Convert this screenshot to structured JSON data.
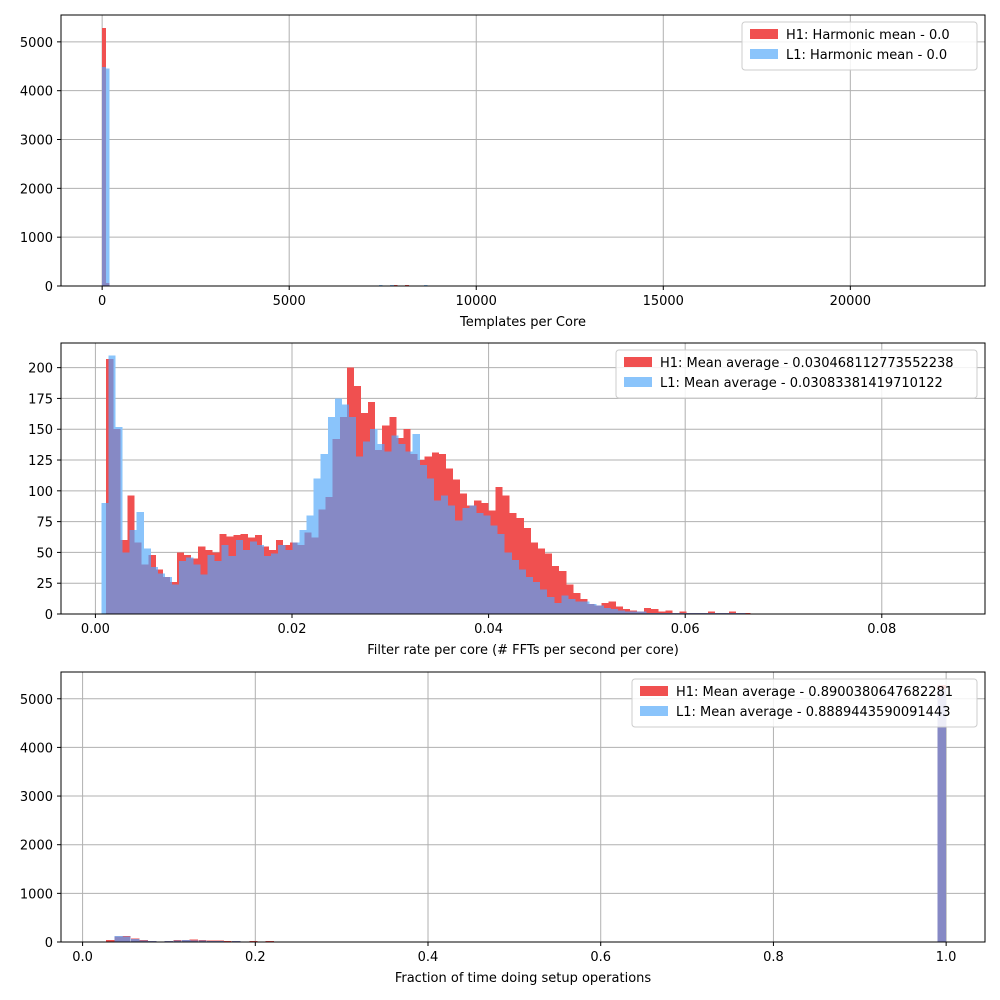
{
  "colors": {
    "H1": "#f05050",
    "L1": "#8ac4fb",
    "overlap": "#8689c5",
    "grid": "#b0b0b0",
    "axis": "#000000"
  },
  "chart_data": [
    {
      "type": "bar",
      "xlabel": "Templates per Core",
      "ylabel": "",
      "title": "",
      "xlim": [
        -1100,
        23600
      ],
      "ylim": [
        0,
        5550
      ],
      "xticks": [
        0,
        5000,
        10000,
        15000,
        20000
      ],
      "yticks": [
        0,
        1000,
        2000,
        3000,
        4000,
        5000
      ],
      "grid": true,
      "legend_position": "top-right",
      "series": [
        {
          "name": "H1: Harmonic mean  - 0.0",
          "bin_width": 100,
          "bins": [
            [
              0,
              5280
            ],
            [
              100,
              60
            ],
            [
              5200,
              6
            ],
            [
              5600,
              5
            ],
            [
              6000,
              6
            ],
            [
              6400,
              5
            ],
            [
              6800,
              8
            ],
            [
              7200,
              10
            ],
            [
              7500,
              14
            ],
            [
              7800,
              16
            ],
            [
              8100,
              20
            ],
            [
              8400,
              14
            ],
            [
              8700,
              12
            ],
            [
              9000,
              10
            ],
            [
              9300,
              8
            ],
            [
              9600,
              9
            ],
            [
              9900,
              10
            ],
            [
              10100,
              14
            ],
            [
              10400,
              8
            ],
            [
              10700,
              6
            ]
          ]
        },
        {
          "name": "L1: Harmonic mean  - 0.0",
          "bin_width": 100,
          "bins": [
            [
              0,
              4480
            ],
            [
              100,
              4450
            ],
            [
              5400,
              5
            ],
            [
              5800,
              6
            ],
            [
              6200,
              6
            ],
            [
              6600,
              7
            ],
            [
              7000,
              9
            ],
            [
              7400,
              16
            ],
            [
              7700,
              18
            ],
            [
              8000,
              12
            ],
            [
              8300,
              14
            ],
            [
              8600,
              18
            ],
            [
              8900,
              14
            ],
            [
              9200,
              10
            ],
            [
              9500,
              8
            ],
            [
              9800,
              10
            ],
            [
              10200,
              8
            ],
            [
              10500,
              6
            ],
            [
              10800,
              8
            ]
          ]
        }
      ]
    },
    {
      "type": "bar",
      "xlabel": "Filter rate per core (# FFTs per second per core)",
      "ylabel": "",
      "title": "",
      "xlim": [
        -0.0035,
        0.0905
      ],
      "ylim": [
        0,
        220
      ],
      "xticks": [
        0.0,
        0.02,
        0.04,
        0.06,
        0.08
      ],
      "xtick_labels": [
        "0.00",
        "0.02",
        "0.04",
        "0.06",
        "0.08"
      ],
      "yticks": [
        0,
        25,
        50,
        75,
        100,
        125,
        150,
        175,
        200
      ],
      "grid": true,
      "legend_position": "top-right",
      "series": [
        {
          "name": "H1: Mean average - 0.030468112773552238",
          "start": 0.0011,
          "bin_width": 0.00072,
          "values": [
            207,
            150,
            60,
            96,
            58,
            40,
            48,
            36,
            30,
            26,
            50,
            48,
            45,
            55,
            52,
            50,
            65,
            63,
            64,
            65,
            62,
            64,
            55,
            52,
            60,
            56,
            58,
            56,
            66,
            62,
            85,
            95,
            142,
            160,
            200,
            185,
            163,
            172,
            133,
            153,
            160,
            143,
            150,
            130,
            125,
            128,
            131,
            130,
            118,
            109,
            98,
            88,
            92,
            90,
            84,
            103,
            96,
            82,
            78,
            70,
            58,
            53,
            49,
            39,
            35,
            24,
            17,
            12,
            8,
            7,
            9,
            10,
            6,
            4,
            3,
            2,
            5,
            4,
            2,
            3,
            1,
            2,
            1,
            1,
            1,
            2,
            1,
            1,
            2,
            1,
            1
          ]
        },
        {
          "name": "L1: Mean average - 0.03083381419710122",
          "start": 0.0006,
          "bin_width": 0.00072,
          "values": [
            90,
            210,
            152,
            50,
            68,
            83,
            53,
            38,
            33,
            30,
            24,
            43,
            46,
            40,
            32,
            48,
            43,
            56,
            47,
            60,
            52,
            59,
            56,
            47,
            49,
            56,
            52,
            58,
            68,
            80,
            110,
            130,
            160,
            175,
            170,
            160,
            128,
            140,
            150,
            138,
            132,
            145,
            138,
            132,
            146,
            121,
            110,
            92,
            96,
            88,
            76,
            86,
            88,
            82,
            80,
            72,
            65,
            50,
            44,
            36,
            30,
            26,
            20,
            14,
            9,
            15,
            12,
            10,
            10,
            8,
            7,
            5,
            4,
            3,
            2,
            2,
            2,
            1,
            1,
            1,
            1,
            1,
            1,
            1,
            1,
            1,
            1,
            1,
            1,
            1,
            1
          ]
        }
      ]
    },
    {
      "type": "bar",
      "xlabel": "Fraction of time doing setup operations",
      "ylabel": "",
      "title": "",
      "xlim": [
        -0.025,
        1.045
      ],
      "ylim": [
        0,
        5550
      ],
      "xticks": [
        0.0,
        0.2,
        0.4,
        0.6,
        0.8,
        1.0
      ],
      "xtick_labels": [
        "0.0",
        "0.2",
        "0.4",
        "0.6",
        "0.8",
        "1.0"
      ],
      "yticks": [
        0,
        1000,
        2000,
        3000,
        4000,
        5000
      ],
      "grid": true,
      "legend_position": "top-right",
      "series": [
        {
          "name": "H1: Mean average - 0.8900380647682281",
          "bin_width": 0.0097,
          "bins": [
            [
              0.027,
              40
            ],
            [
              0.037,
              110
            ],
            [
              0.046,
              120
            ],
            [
              0.056,
              70
            ],
            [
              0.066,
              40
            ],
            [
              0.076,
              25
            ],
            [
              0.095,
              25
            ],
            [
              0.105,
              40
            ],
            [
              0.115,
              45
            ],
            [
              0.124,
              50
            ],
            [
              0.134,
              40
            ],
            [
              0.144,
              30
            ],
            [
              0.154,
              35
            ],
            [
              0.163,
              25
            ],
            [
              0.173,
              20
            ],
            [
              0.193,
              20
            ],
            [
              0.212,
              20
            ],
            [
              0.232,
              15
            ],
            [
              0.251,
              15
            ],
            [
              0.271,
              10
            ],
            [
              0.28,
              15
            ],
            [
              0.29,
              10
            ],
            [
              0.99,
              5280
            ]
          ]
        },
        {
          "name": "L1: Mean average - 0.8889443590091443",
          "bin_width": 0.0097,
          "bins": [
            [
              0.037,
              120
            ],
            [
              0.046,
              110
            ],
            [
              0.056,
              60
            ],
            [
              0.066,
              30
            ],
            [
              0.076,
              20
            ],
            [
              0.095,
              20
            ],
            [
              0.105,
              35
            ],
            [
              0.115,
              40
            ],
            [
              0.124,
              30
            ],
            [
              0.134,
              35
            ],
            [
              0.144,
              25
            ],
            [
              0.154,
              20
            ],
            [
              0.173,
              20
            ],
            [
              0.193,
              15
            ],
            [
              0.212,
              15
            ],
            [
              0.241,
              10
            ],
            [
              0.261,
              10
            ],
            [
              0.28,
              10
            ],
            [
              0.99,
              5200
            ]
          ]
        }
      ]
    }
  ]
}
